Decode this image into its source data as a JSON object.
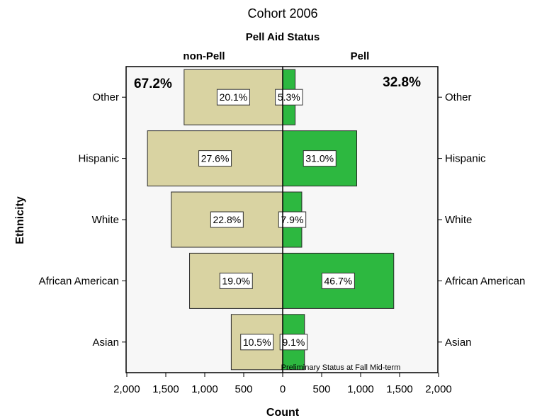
{
  "chart_data": {
    "type": "bar",
    "title": "Cohort 2006",
    "subtitle": "Pell Aid Status",
    "ylabel": "Ethnicity",
    "xlabel": "Count",
    "footnote": "Preliminary Status at Fall Mid-term",
    "categories": [
      "Other",
      "Hispanic",
      "White",
      "African American",
      "Asian"
    ],
    "xlim": [
      -2000,
      2000
    ],
    "xticks": [
      -2000,
      -1500,
      -1000,
      -500,
      0,
      500,
      1000,
      1500,
      2000
    ],
    "xtick_labels": [
      "2,000",
      "1,500",
      "1,000",
      "500",
      "0",
      "500",
      "1,000",
      "1,500",
      "2,000"
    ],
    "series": [
      {
        "name": "non-Pell",
        "side": "left",
        "color": "#d9d3a2",
        "total_label": "67.2%",
        "total_color": "#444444",
        "values": [
          1265,
          1735,
          1430,
          1195,
          660
        ],
        "labels": [
          "20.1%",
          "27.6%",
          "22.8%",
          "19.0%",
          "10.5%"
        ]
      },
      {
        "name": "Pell",
        "side": "right",
        "color": "#2db840",
        "total_label": "32.8%",
        "total_color": "#1e6b2a",
        "values": [
          160,
          950,
          245,
          1425,
          280
        ],
        "labels": [
          "5.3%",
          "31.0%",
          "7.9%",
          "46.7%",
          "9.1%"
        ]
      }
    ]
  }
}
